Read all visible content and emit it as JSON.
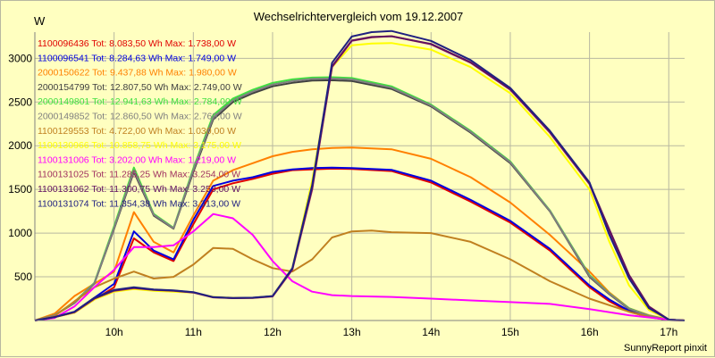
{
  "window": {
    "title": "Wechselrichtervergleich vom 19.12.2007",
    "y_unit": "W",
    "credit": "SunnyReport pinxit"
  },
  "colors": {
    "background": "#ffffc0",
    "plot_background": "#ffffc0",
    "grid": "#b8b8a0",
    "axis": "#808080"
  },
  "chart_data": {
    "type": "line",
    "title": "Wechselrichtervergleich vom 19.12.2007",
    "xlabel": "",
    "ylabel": "W",
    "xlim": [
      9.0,
      17.2
    ],
    "ylim": [
      0,
      3300
    ],
    "x_ticks": [
      {
        "value": 10,
        "label": "10h"
      },
      {
        "value": 11,
        "label": "11h"
      },
      {
        "value": 12,
        "label": "12h"
      },
      {
        "value": 13,
        "label": "13h"
      },
      {
        "value": 14,
        "label": "14h"
      },
      {
        "value": 15,
        "label": "15h"
      },
      {
        "value": 16,
        "label": "16h"
      },
      {
        "value": 17,
        "label": "17h"
      }
    ],
    "y_ticks": [
      500,
      1000,
      1500,
      2000,
      2500,
      3000
    ],
    "grid": true,
    "legend_position": "top-left",
    "series": [
      {
        "name": "1100096436",
        "legend": "1100096436 Tot: 8.083,50 Wh Max: 1.738,00 W",
        "color": "#e00000",
        "x": [
          9.0,
          9.25,
          9.5,
          9.75,
          10.0,
          10.25,
          10.5,
          10.75,
          11.0,
          11.25,
          11.5,
          11.75,
          12.0,
          12.25,
          12.5,
          12.75,
          13.0,
          13.5,
          14.0,
          14.5,
          15.0,
          15.5,
          16.0,
          16.25,
          16.5,
          16.75,
          17.0,
          17.2
        ],
        "y": [
          0,
          40,
          90,
          240,
          380,
          940,
          780,
          680,
          1100,
          1500,
          1570,
          1620,
          1680,
          1720,
          1730,
          1738,
          1735,
          1710,
          1580,
          1360,
          1120,
          800,
          380,
          220,
          100,
          40,
          5,
          0
        ]
      },
      {
        "name": "1100096541",
        "legend": "1100096541 Tot: 8.284,63 Wh Max: 1.749,00 W",
        "color": "#0000e0",
        "x": [
          9.0,
          9.25,
          9.5,
          9.75,
          10.0,
          10.25,
          10.5,
          10.75,
          11.0,
          11.25,
          11.5,
          11.75,
          12.0,
          12.25,
          12.5,
          12.75,
          13.0,
          13.5,
          14.0,
          14.5,
          15.0,
          15.5,
          16.0,
          16.25,
          16.5,
          16.75,
          17.0,
          17.2
        ],
        "y": [
          0,
          40,
          100,
          260,
          420,
          1020,
          800,
          700,
          1150,
          1540,
          1600,
          1640,
          1700,
          1730,
          1745,
          1749,
          1745,
          1725,
          1600,
          1380,
          1140,
          820,
          400,
          240,
          110,
          45,
          5,
          0
        ]
      },
      {
        "name": "2000150622",
        "legend": "2000150622 Tot: 9.437,88 Wh Max: 1.980,00 W",
        "color": "#ff8000",
        "x": [
          9.0,
          9.25,
          9.5,
          9.75,
          10.0,
          10.25,
          10.5,
          10.75,
          11.0,
          11.25,
          11.5,
          11.75,
          12.0,
          12.25,
          12.5,
          12.75,
          13.0,
          13.5,
          14.0,
          14.5,
          15.0,
          15.5,
          16.0,
          16.25,
          16.5,
          16.75,
          17.0,
          17.2
        ],
        "y": [
          0,
          80,
          280,
          420,
          560,
          1240,
          900,
          780,
          1200,
          1600,
          1720,
          1800,
          1880,
          1930,
          1960,
          1975,
          1980,
          1960,
          1850,
          1640,
          1350,
          980,
          560,
          320,
          140,
          60,
          10,
          0
        ]
      },
      {
        "name": "2000154799",
        "legend": "2000154799 Tot: 12.807,50 Wh Max: 2.749,00 W",
        "color": "#404040",
        "x": [
          9.0,
          9.25,
          9.5,
          9.75,
          10.0,
          10.25,
          10.5,
          10.75,
          11.0,
          11.25,
          11.5,
          11.75,
          12.0,
          12.25,
          12.5,
          12.75,
          13.0,
          13.5,
          14.0,
          14.5,
          15.0,
          15.5,
          16.0,
          16.25,
          16.5,
          16.75,
          17.0,
          17.2
        ],
        "y": [
          0,
          60,
          200,
          420,
          1050,
          1700,
          1200,
          1050,
          1700,
          2300,
          2500,
          2600,
          2680,
          2720,
          2745,
          2749,
          2740,
          2650,
          2450,
          2150,
          1800,
          1250,
          500,
          300,
          130,
          50,
          10,
          0
        ]
      },
      {
        "name": "2000149801",
        "legend": "2000149801 Tot: 12.941,63 Wh Max: 2.784,00 W",
        "color": "#40e040",
        "x": [
          9.0,
          9.25,
          9.5,
          9.75,
          10.0,
          10.25,
          10.5,
          10.75,
          11.0,
          11.25,
          11.5,
          11.75,
          12.0,
          12.25,
          12.5,
          12.75,
          13.0,
          13.5,
          14.0,
          14.5,
          15.0,
          15.5,
          16.0,
          16.25,
          16.5,
          16.75,
          17.0,
          17.2
        ],
        "y": [
          0,
          60,
          210,
          430,
          1080,
          1750,
          1220,
          1060,
          1740,
          2350,
          2540,
          2640,
          2720,
          2760,
          2780,
          2784,
          2775,
          2680,
          2470,
          2170,
          1820,
          1260,
          520,
          310,
          140,
          55,
          10,
          0
        ]
      },
      {
        "name": "2000149852",
        "legend": "2000149852 Tot: 12.860,50 Wh Max: 2.769,00 W",
        "color": "#808080",
        "x": [
          9.0,
          9.25,
          9.5,
          9.75,
          10.0,
          10.25,
          10.5,
          10.75,
          11.0,
          11.25,
          11.5,
          11.75,
          12.0,
          12.25,
          12.5,
          12.75,
          13.0,
          13.5,
          14.0,
          14.5,
          15.0,
          15.5,
          16.0,
          16.25,
          16.5,
          16.75,
          17.0,
          17.2
        ],
        "y": [
          0,
          60,
          205,
          425,
          1060,
          1720,
          1210,
          1055,
          1720,
          2320,
          2520,
          2620,
          2700,
          2740,
          2765,
          2769,
          2760,
          2665,
          2460,
          2160,
          1810,
          1255,
          510,
          305,
          135,
          52,
          10,
          0
        ]
      },
      {
        "name": "1100129553",
        "legend": "1100129553 Tot: 4.722,00 Wh Max: 1.030,00 W",
        "color": "#c08020",
        "x": [
          9.0,
          9.25,
          9.5,
          9.75,
          10.0,
          10.25,
          10.5,
          10.75,
          11.0,
          11.25,
          11.5,
          11.75,
          12.0,
          12.25,
          12.5,
          12.75,
          13.0,
          13.25,
          13.5,
          14.0,
          14.5,
          15.0,
          15.5,
          16.0,
          16.5,
          16.75,
          17.0,
          17.2
        ],
        "y": [
          0,
          50,
          220,
          380,
          480,
          560,
          480,
          500,
          640,
          830,
          820,
          700,
          600,
          560,
          700,
          950,
          1020,
          1030,
          1010,
          1000,
          900,
          700,
          450,
          250,
          100,
          40,
          10,
          0
        ]
      },
      {
        "name": "1100130966",
        "legend": "1100130966 Tot: 10.858,75 Wh Max: 3.175,00 W",
        "color": "#ffff00",
        "x": [
          9.0,
          9.25,
          9.5,
          9.75,
          10.0,
          10.25,
          10.5,
          10.75,
          11.0,
          11.25,
          11.5,
          11.75,
          12.0,
          12.25,
          12.5,
          12.75,
          13.0,
          13.25,
          13.5,
          14.0,
          14.5,
          15.0,
          15.5,
          16.0,
          16.25,
          16.5,
          16.75,
          17.0,
          17.2
        ],
        "y": [
          0,
          40,
          90,
          240,
          330,
          360,
          340,
          330,
          320,
          270,
          260,
          260,
          280,
          600,
          1600,
          2900,
          3150,
          3170,
          3175,
          3100,
          2900,
          2600,
          2100,
          1500,
          900,
          400,
          120,
          10,
          0
        ]
      },
      {
        "name": "1100131006",
        "legend": "1100131006 Tot: 3.202,00 Wh Max: 1.219,00 W",
        "color": "#ff00ff",
        "x": [
          9.0,
          9.25,
          9.5,
          9.75,
          10.0,
          10.25,
          10.5,
          10.75,
          11.0,
          11.25,
          11.5,
          11.75,
          12.0,
          12.25,
          12.5,
          12.75,
          13.0,
          13.5,
          14.0,
          14.5,
          15.0,
          15.5,
          16.0,
          16.5,
          17.0,
          17.2
        ],
        "y": [
          0,
          30,
          160,
          380,
          580,
          840,
          840,
          860,
          1020,
          1219,
          1170,
          980,
          680,
          450,
          330,
          290,
          280,
          270,
          250,
          230,
          210,
          190,
          130,
          60,
          10,
          0
        ]
      },
      {
        "name": "1100131025",
        "legend": "1100131025 Tot: 11.285,25 Wh Max: 3.254,00 W",
        "color": "#a03060",
        "x": [
          9.0,
          9.25,
          9.5,
          9.75,
          10.0,
          10.25,
          10.5,
          10.75,
          11.0,
          11.25,
          11.5,
          11.75,
          12.0,
          12.25,
          12.5,
          12.75,
          13.0,
          13.25,
          13.5,
          14.0,
          14.5,
          15.0,
          15.5,
          16.0,
          16.25,
          16.5,
          16.75,
          17.0,
          17.2
        ],
        "y": [
          0,
          40,
          95,
          250,
          340,
          370,
          350,
          340,
          320,
          265,
          255,
          258,
          275,
          580,
          1500,
          2900,
          3200,
          3240,
          3254,
          3160,
          2950,
          2640,
          2150,
          1560,
          1000,
          500,
          150,
          10,
          0
        ]
      },
      {
        "name": "1100131062",
        "legend": "1100131062 Tot: 11.300,75 Wh Max: 3.253,00 W",
        "color": "#601060",
        "x": [
          9.0,
          9.25,
          9.5,
          9.75,
          10.0,
          10.25,
          10.5,
          10.75,
          11.0,
          11.25,
          11.5,
          11.75,
          12.0,
          12.25,
          12.5,
          12.75,
          13.0,
          13.25,
          13.5,
          14.0,
          14.5,
          15.0,
          15.5,
          16.0,
          16.25,
          16.5,
          16.75,
          17.0,
          17.2
        ],
        "y": [
          0,
          40,
          95,
          250,
          345,
          375,
          352,
          342,
          322,
          266,
          256,
          260,
          278,
          590,
          1520,
          2910,
          3205,
          3245,
          3253,
          3165,
          2955,
          2645,
          2160,
          1570,
          1040,
          520,
          160,
          10,
          0
        ]
      },
      {
        "name": "1100131074",
        "legend": "1100131074 Tot: 11.354,38 Wh Max: 3.313,00 W",
        "color": "#202080",
        "x": [
          9.0,
          9.25,
          9.5,
          9.75,
          10.0,
          10.25,
          10.5,
          10.75,
          11.0,
          11.25,
          11.5,
          11.75,
          12.0,
          12.25,
          12.5,
          12.75,
          13.0,
          13.25,
          13.5,
          14.0,
          14.5,
          15.0,
          15.5,
          16.0,
          16.25,
          16.5,
          16.75,
          17.0,
          17.2
        ],
        "y": [
          0,
          40,
          100,
          260,
          350,
          380,
          355,
          345,
          325,
          268,
          258,
          262,
          280,
          600,
          1550,
          2950,
          3250,
          3300,
          3313,
          3200,
          2980,
          2660,
          2170,
          1580,
          980,
          480,
          140,
          10,
          0
        ]
      }
    ]
  }
}
